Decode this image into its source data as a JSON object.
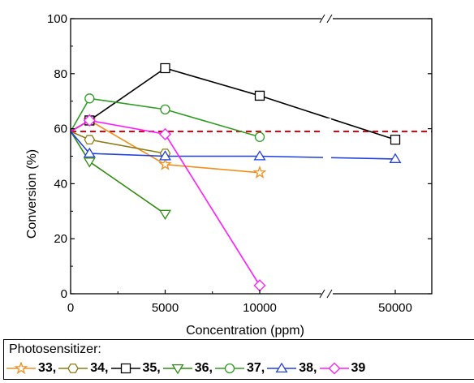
{
  "chart_data": {
    "type": "line",
    "xlabel": "Concentration (ppm)",
    "ylabel": "Conversion (%)",
    "x_ticks": [
      "0",
      "5000",
      "10000",
      "50000"
    ],
    "y_ticks": [
      "0",
      "20",
      "40",
      "60",
      "80",
      "100"
    ],
    "ylim": [
      0,
      100
    ],
    "x_axis_break": "between 10000 and 50000",
    "reference_line": {
      "y": 59,
      "color": "#e8000b",
      "style": "dashed"
    },
    "legend": {
      "title": "Photosensitizer:",
      "placement": "bottom"
    },
    "series": [
      {
        "name": "33",
        "color": "#f28e1c",
        "marker": "star",
        "x": [
          0,
          1000,
          5000,
          10000
        ],
        "y": [
          59,
          63,
          47,
          44
        ]
      },
      {
        "name": "34",
        "color": "#8a7d14",
        "marker": "hexagon",
        "x": [
          0,
          1000,
          5000
        ],
        "y": [
          59,
          56,
          51
        ]
      },
      {
        "name": "35",
        "color": "#000000",
        "marker": "square",
        "x": [
          0,
          1000,
          5000,
          10000,
          50000
        ],
        "y": [
          59,
          63,
          82,
          72,
          56
        ]
      },
      {
        "name": "36",
        "color": "#2e8b10",
        "marker": "triangle-down",
        "x": [
          0,
          1000,
          5000
        ],
        "y": [
          59,
          48,
          29
        ]
      },
      {
        "name": "37",
        "color": "#2e9b22",
        "marker": "circle",
        "x": [
          0,
          1000,
          5000,
          10000
        ],
        "y": [
          59,
          71,
          67,
          57
        ]
      },
      {
        "name": "38",
        "color": "#1f3fe0",
        "marker": "triangle-up",
        "x": [
          0,
          1000,
          5000,
          10000,
          50000
        ],
        "y": [
          59,
          51,
          50,
          50,
          49
        ]
      },
      {
        "name": "39",
        "color": "#ff1aff",
        "marker": "diamond",
        "x": [
          0,
          1000,
          5000,
          10000
        ],
        "y": [
          59,
          63,
          58,
          3
        ]
      }
    ]
  }
}
